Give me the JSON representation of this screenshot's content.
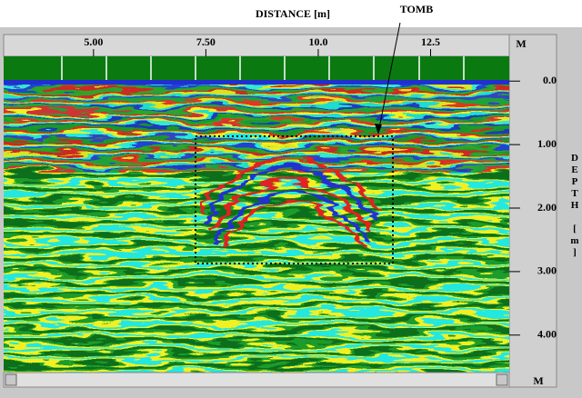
{
  "chart_data": {
    "type": "radargram",
    "title": "DISTANCE [m]",
    "annotation": "TOMB",
    "x_unit_label": "M",
    "y_unit_label": "M",
    "ylabel": "DEPTH [m]",
    "xlim": [
      3,
      14.25
    ],
    "xticks": [
      {
        "value": 5,
        "label": "5.00"
      },
      {
        "value": 7.5,
        "label": "7.50"
      },
      {
        "value": 10,
        "label": "10.0"
      },
      12.5
    ],
    "ylim": [
      -0.39,
      4.59
    ],
    "yticks": [
      {
        "value": 0,
        "label": "0.0"
      },
      {
        "value": 1,
        "label": "1.00"
      },
      {
        "value": 2,
        "label": "2.00"
      },
      {
        "value": 3,
        "label": "3.00"
      },
      {
        "value": 4,
        "label": "4.00"
      }
    ],
    "y_inverted": true
  }
}
